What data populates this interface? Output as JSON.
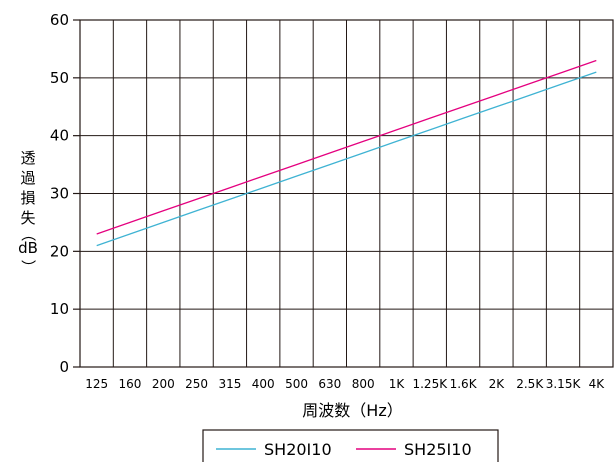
{
  "chart_data": {
    "type": "line",
    "title": "",
    "xlabel": "周波数（Hz）",
    "ylabel_lines": [
      "透",
      "過",
      "損",
      "失",
      "（",
      "dB",
      "）"
    ],
    "ylim": [
      0,
      60
    ],
    "y_ticks": [
      0,
      10,
      20,
      30,
      40,
      50,
      60
    ],
    "grid": true,
    "legend_position": "bottom-center",
    "categories": [
      "125",
      "160",
      "200",
      "250",
      "315",
      "400",
      "500",
      "630",
      "800",
      "1K",
      "1.25K",
      "1.6K",
      "2K",
      "2.5K",
      "3.15K",
      "4K"
    ],
    "series": [
      {
        "name": "SH20I10",
        "color": "#3fb3d3",
        "values": [
          21,
          23,
          25,
          27,
          29,
          31,
          33,
          35,
          37,
          39,
          41,
          43,
          45,
          47,
          49,
          51
        ]
      },
      {
        "name": "SH25I10",
        "color": "#e4007f",
        "values": [
          23,
          25,
          27,
          29,
          31,
          33,
          35,
          37,
          39,
          41,
          43,
          45,
          47,
          49,
          51,
          53
        ]
      }
    ]
  }
}
